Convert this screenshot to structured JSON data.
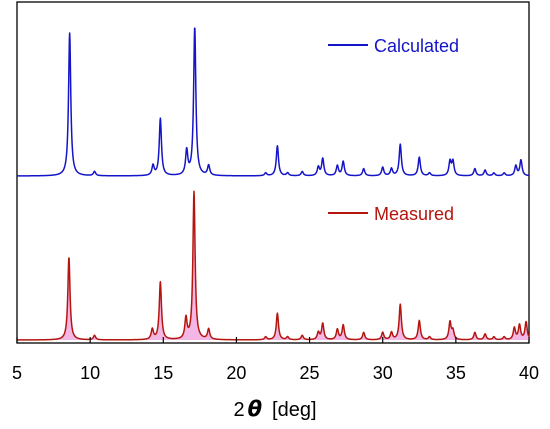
{
  "chart_data": {
    "type": "line",
    "xlabel_prefix": "2",
    "xlabel_symbol": "θ",
    "xlabel_unit": "[deg]",
    "xlim": [
      5,
      40
    ],
    "x_ticks": [
      "5",
      "10",
      "15",
      "20",
      "25",
      "30",
      "35",
      "40"
    ],
    "grid": false,
    "legend_position": "top-right, per panel",
    "series": [
      {
        "name": "Calculated",
        "color": "#1414c8",
        "peaks": [
          [
            8.6,
            1.0
          ],
          [
            10.3,
            0.03
          ],
          [
            14.3,
            0.07
          ],
          [
            14.8,
            0.4
          ],
          [
            16.6,
            0.17
          ],
          [
            17.15,
            1.04
          ],
          [
            18.1,
            0.07
          ],
          [
            22.0,
            0.02
          ],
          [
            22.8,
            0.21
          ],
          [
            23.5,
            0.02
          ],
          [
            24.5,
            0.03
          ],
          [
            25.6,
            0.06
          ],
          [
            25.9,
            0.12
          ],
          [
            26.9,
            0.07
          ],
          [
            27.3,
            0.1
          ],
          [
            28.7,
            0.05
          ],
          [
            30.0,
            0.06
          ],
          [
            30.6,
            0.05
          ],
          [
            31.2,
            0.22
          ],
          [
            32.5,
            0.13
          ],
          [
            33.2,
            0.02
          ],
          [
            34.6,
            0.1
          ],
          [
            34.8,
            0.1
          ],
          [
            36.3,
            0.05
          ],
          [
            37.0,
            0.04
          ],
          [
            37.6,
            0.02
          ],
          [
            38.3,
            0.02
          ],
          [
            39.1,
            0.07
          ],
          [
            39.45,
            0.11
          ]
        ]
      },
      {
        "name": "Measured",
        "color": "#b4150f",
        "fill_color": "#f4b6e4",
        "peaks": [
          [
            8.55,
            0.56
          ],
          [
            10.3,
            0.03
          ],
          [
            14.25,
            0.07
          ],
          [
            14.8,
            0.39
          ],
          [
            16.55,
            0.14
          ],
          [
            17.1,
            1.0
          ],
          [
            18.1,
            0.07
          ],
          [
            22.0,
            0.02
          ],
          [
            22.8,
            0.18
          ],
          [
            23.5,
            0.02
          ],
          [
            24.5,
            0.03
          ],
          [
            25.6,
            0.05
          ],
          [
            25.9,
            0.11
          ],
          [
            26.9,
            0.07
          ],
          [
            27.3,
            0.1
          ],
          [
            28.7,
            0.05
          ],
          [
            30.0,
            0.05
          ],
          [
            30.6,
            0.05
          ],
          [
            31.2,
            0.24
          ],
          [
            32.5,
            0.13
          ],
          [
            33.2,
            0.02
          ],
          [
            34.6,
            0.12
          ],
          [
            34.8,
            0.06
          ],
          [
            36.3,
            0.05
          ],
          [
            37.0,
            0.04
          ],
          [
            37.6,
            0.02
          ],
          [
            38.3,
            0.02
          ],
          [
            39.0,
            0.08
          ],
          [
            39.35,
            0.1
          ],
          [
            39.8,
            0.12
          ]
        ]
      }
    ]
  }
}
